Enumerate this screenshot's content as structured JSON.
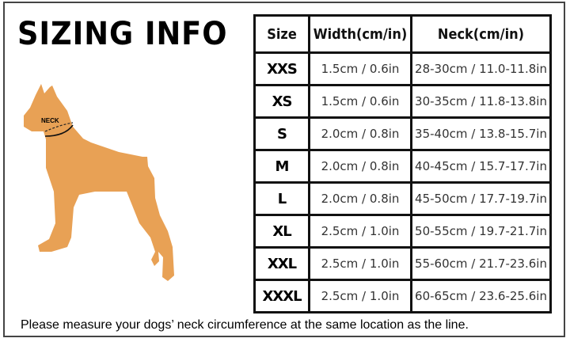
{
  "title": "SIZING INFO",
  "illustration": {
    "label": "NECK",
    "fill": "#e8a155"
  },
  "table": {
    "headers": [
      "Size",
      "Width(cm/in)",
      "Neck(cm/in)"
    ],
    "rows": [
      [
        "XXS",
        "1.5cm / 0.6in",
        "28-30cm / 11.0-11.8in"
      ],
      [
        "XS",
        "1.5cm / 0.6in",
        "30-35cm / 11.8-13.8in"
      ],
      [
        "S",
        "2.0cm / 0.8in",
        "35-40cm / 13.8-15.7in"
      ],
      [
        "M",
        "2.0cm / 0.8in",
        "40-45cm / 15.7-17.7in"
      ],
      [
        "L",
        "2.0cm / 0.8in",
        "45-50cm / 17.7-19.7in"
      ],
      [
        "XL",
        "2.5cm / 1.0in",
        "50-55cm / 19.7-21.7in"
      ],
      [
        "XXL",
        "2.5cm / 1.0in",
        "55-60cm / 21.7-23.6in"
      ],
      [
        "XXXL",
        "2.5cm / 1.0in",
        "60-65cm / 23.6-25.6in"
      ]
    ]
  },
  "note": "Please measure your dogs’  neck circumference at the same location as the line."
}
